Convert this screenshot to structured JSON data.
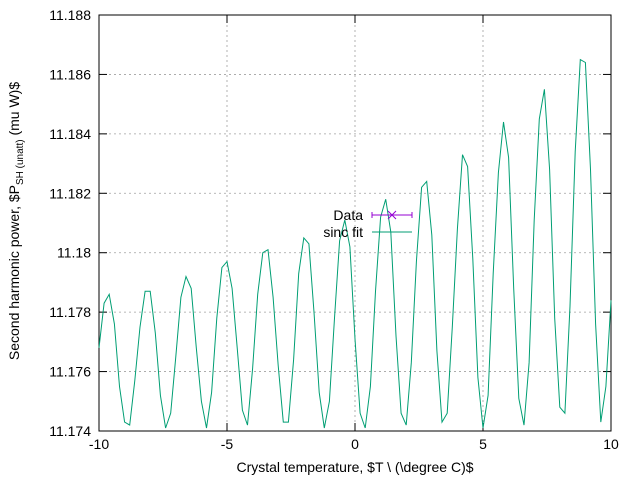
{
  "chart_data": {
    "type": "line",
    "xlabel": "Crystal temperature, $T \\ (\\degree C)$",
    "ylabel": "Second harmonic power, $P_{SH (unatt)}$ (mu W)$",
    "ylabel_parts": {
      "pre": "Second harmonic power, $P",
      "sub": "SH (unatt)",
      "post": " (mu W)$"
    },
    "xlim": [
      -10,
      10
    ],
    "ylim": [
      11.174,
      11.188
    ],
    "x_ticks": [
      -10,
      -5,
      0,
      5,
      10
    ],
    "y_ticks": [
      11.174,
      11.176,
      11.178,
      11.18,
      11.182,
      11.184,
      11.186,
      11.188
    ],
    "x_tick_labels": [
      "-10",
      "-5",
      "0",
      "5",
      "10"
    ],
    "y_tick_labels": [
      "11.174",
      "11.176",
      "11.178",
      "11.18",
      "11.182",
      "11.184",
      "11.186",
      "11.188"
    ],
    "grid": true,
    "legend_position": "center",
    "series": [
      {
        "name": "Data",
        "color": "#9400d3",
        "style": "errorbar-points",
        "x": [],
        "y": []
      },
      {
        "name": "sinc fit",
        "color": "#009e73",
        "style": "line",
        "x": [
          -10,
          -9.8,
          -9.6,
          -9.4,
          -9.2,
          -9.0,
          -8.8,
          -8.6,
          -8.4,
          -8.2,
          -8.0,
          -7.8,
          -7.6,
          -7.4,
          -7.2,
          -7.0,
          -6.8,
          -6.6,
          -6.4,
          -6.2,
          -6.0,
          -5.8,
          -5.6,
          -5.4,
          -5.2,
          -5.0,
          -4.8,
          -4.6,
          -4.4,
          -4.2,
          -4.0,
          -3.8,
          -3.6,
          -3.4,
          -3.2,
          -3.0,
          -2.8,
          -2.6,
          -2.4,
          -2.2,
          -2.0,
          -1.8,
          -1.6,
          -1.4,
          -1.2,
          -1.0,
          -0.8,
          -0.6,
          -0.4,
          -0.2,
          0.0,
          0.2,
          0.4,
          0.6,
          0.8,
          1.0,
          1.2,
          1.4,
          1.6,
          1.8,
          2.0,
          2.2,
          2.4,
          2.6,
          2.8,
          3.0,
          3.2,
          3.4,
          3.6,
          3.8,
          4.0,
          4.2,
          4.4,
          4.6,
          4.8,
          5.0,
          5.2,
          5.4,
          5.6,
          5.8,
          6.0,
          6.2,
          6.4,
          6.6,
          6.8,
          7.0,
          7.2,
          7.4,
          7.6,
          7.8,
          8.0,
          8.2,
          8.4,
          8.6,
          8.8,
          9.0,
          9.2,
          9.4,
          9.6,
          9.8,
          10.0
        ],
        "y": [
          11.1768,
          11.1783,
          11.1786,
          11.1776,
          11.1755,
          11.1743,
          11.1742,
          11.1757,
          11.1775,
          11.1787,
          11.1787,
          11.1773,
          11.1752,
          11.1741,
          11.1746,
          11.1765,
          11.1785,
          11.1792,
          11.1788,
          11.1768,
          11.175,
          11.1741,
          11.1753,
          11.1778,
          11.1795,
          11.1797,
          11.1788,
          11.1768,
          11.1747,
          11.1742,
          11.1761,
          11.1786,
          11.18,
          11.1801,
          11.1785,
          11.1762,
          11.1743,
          11.1743,
          11.1764,
          11.1793,
          11.1805,
          11.1803,
          11.178,
          11.1753,
          11.1741,
          11.175,
          11.1778,
          11.1804,
          11.1811,
          11.1802,
          11.1771,
          11.1746,
          11.1741,
          11.1755,
          11.1787,
          11.1812,
          11.1818,
          11.1807,
          11.1772,
          11.1746,
          11.1742,
          11.1763,
          11.1797,
          11.1822,
          11.1824,
          11.1806,
          11.1767,
          11.1743,
          11.1746,
          11.1775,
          11.1808,
          11.1833,
          11.1829,
          11.1798,
          11.1758,
          11.1741,
          11.1752,
          11.1793,
          11.1827,
          11.1844,
          11.1832,
          11.1788,
          11.1751,
          11.1742,
          11.1763,
          11.1811,
          11.1845,
          11.1855,
          11.1828,
          11.1778,
          11.1748,
          11.1746,
          11.1782,
          11.1834,
          11.1865,
          11.1864,
          11.1828,
          11.1776,
          11.1743,
          11.1755,
          11.1784
        ]
      }
    ]
  }
}
